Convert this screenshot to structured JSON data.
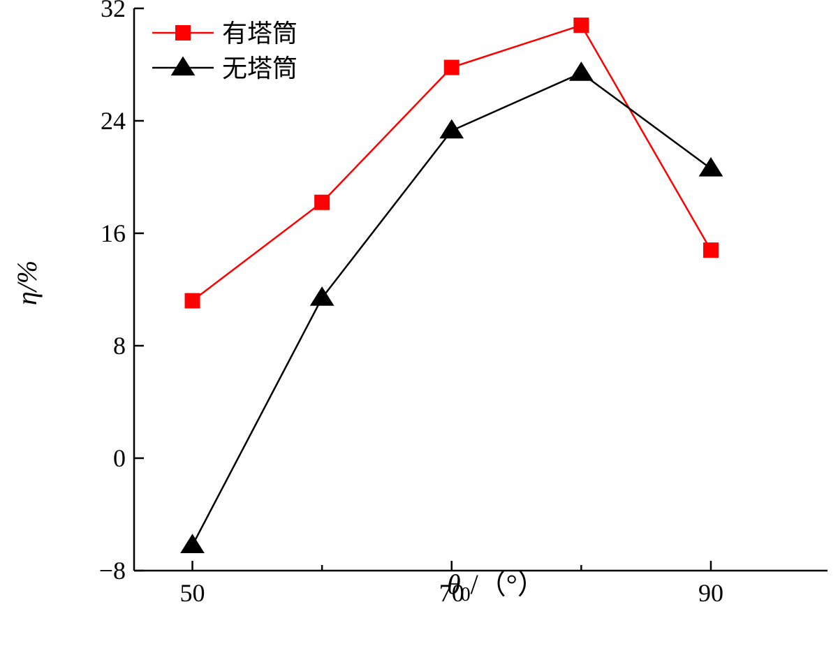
{
  "chart_data": {
    "type": "line",
    "xlabel": "θ0/（°）",
    "xlabel_main": "θ",
    "xlabel_sub": "0",
    "xlabel_unit": "/（°）",
    "ylabel": "η/%",
    "xlim": [
      45.5,
      99
    ],
    "ylim": [
      -8,
      32
    ],
    "xticks": [
      50,
      70,
      90
    ],
    "xtick_labels": [
      "50",
      "70",
      "90"
    ],
    "yticks": [
      -8,
      0,
      8,
      16,
      24,
      32
    ],
    "ytick_labels": [
      "−8",
      "0",
      "8",
      "16",
      "24",
      "32"
    ],
    "x": [
      50,
      60,
      70,
      80,
      90
    ],
    "series": [
      {
        "name": "有塔筒",
        "color": "#ff0000",
        "marker": "square",
        "values": [
          11.2,
          18.2,
          27.8,
          30.8,
          14.8
        ]
      },
      {
        "name": "无塔筒",
        "color": "#000000",
        "marker": "triangle",
        "values": [
          -6.2,
          11.4,
          23.3,
          27.4,
          20.6
        ]
      }
    ],
    "legend_position": "top-left",
    "grid": false
  }
}
